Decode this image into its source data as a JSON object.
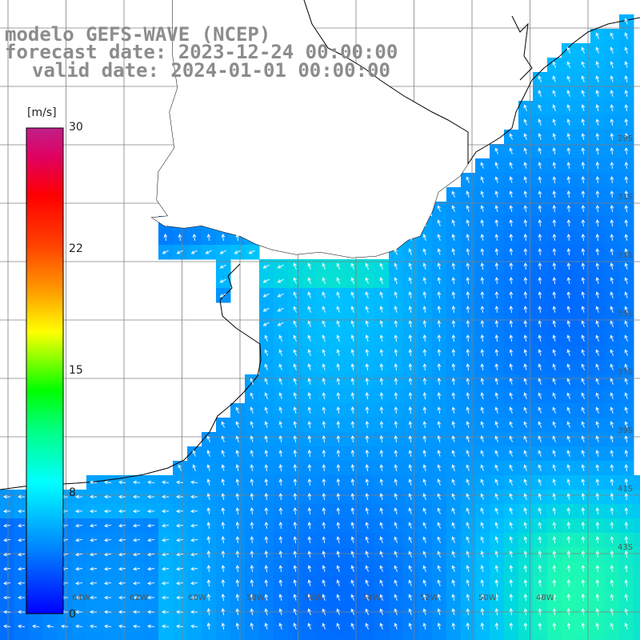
{
  "title": {
    "line1": "modelo GEFS-WAVE (NCEP)",
    "line2": "forecast date: 2023-12-24 00:00:00",
    "line3": "valid date: 2024-01-01 00:00:00"
  },
  "colorbar": {
    "unit": "[m/s]",
    "ticks": [
      "30",
      "22",
      "15",
      "8",
      "0"
    ]
  },
  "grid_labels": {
    "longitudes": [
      "64W",
      "62W",
      "60W",
      "58W",
      "56W",
      "54W",
      "52W",
      "50W",
      "48W"
    ],
    "latitudes": [
      "29S",
      "31S",
      "33S",
      "35S",
      "37S",
      "39S",
      "41S",
      "43S"
    ]
  },
  "colors": {
    "land": "#ffffff",
    "coast": "#000000",
    "grid": "#808080",
    "arrows": "#ffffff",
    "title": "#8c8c8c"
  }
}
